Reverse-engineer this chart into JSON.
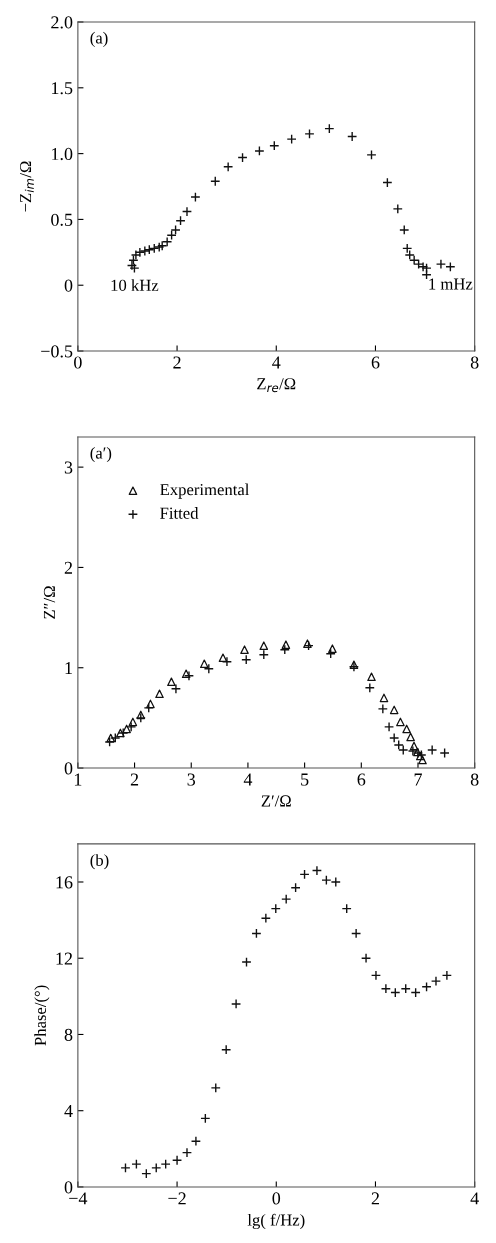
{
  "chart_data": [
    {
      "type": "scatter",
      "xlabel": "Z$_{re}$/Ω",
      "ylabel": "−Z$_{im}$/Ω",
      "marker": "cross",
      "color": "#111111",
      "xlim": [
        0,
        8
      ],
      "ylim": [
        -0.5,
        2.0
      ],
      "xticks": [
        0,
        2,
        4,
        6,
        8
      ],
      "yticks": [
        {
          "value": -0.5,
          "label": "−0.5"
        },
        0,
        0.5,
        {
          "value": 1.0,
          "label": "1.0"
        },
        1.5,
        {
          "value": 2.0,
          "label": "2.0"
        }
      ],
      "annotations": [
        "(a)",
        {
          "text": "10 kHz",
          "x": 1.14,
          "y": 0.13
        },
        {
          "text": "1 mHz",
          "x": 7.51,
          "y": 0.14
        }
      ],
      "x": [
        1.09,
        1.14,
        1.12,
        1.17,
        1.25,
        1.35,
        1.44,
        1.54,
        1.64,
        1.7,
        1.8,
        1.89,
        1.97,
        2.07,
        2.2,
        2.37,
        2.77,
        3.03,
        3.32,
        3.66,
        3.96,
        4.31,
        4.67,
        5.07,
        5.53,
        5.92,
        6.24,
        6.45,
        6.58,
        6.64,
        6.69,
        6.78,
        6.87,
        6.96,
        7.03,
        7.03,
        7.32,
        7.51
      ],
      "values": [
        0.15,
        0.13,
        0.19,
        0.23,
        0.25,
        0.26,
        0.27,
        0.28,
        0.29,
        0.3,
        0.33,
        0.38,
        0.42,
        0.49,
        0.56,
        0.67,
        0.79,
        0.9,
        0.97,
        1.02,
        1.06,
        1.11,
        1.15,
        1.19,
        1.13,
        0.99,
        0.78,
        0.58,
        0.42,
        0.28,
        0.23,
        0.19,
        0.16,
        0.14,
        0.13,
        0.08,
        0.16,
        0.14
      ]
    },
    {
      "type": "scatter",
      "xlabel": "Z′/Ω",
      "ylabel": "Z″/Ω",
      "legend": "top left",
      "xlim": [
        1,
        8
      ],
      "ylim": [
        0,
        3.3
      ],
      "xticks": [
        1,
        2,
        3,
        4,
        5,
        6,
        7,
        8
      ],
      "yticks": [
        0,
        1,
        2,
        3
      ],
      "annotations": [
        "(a′)"
      ],
      "series": [
        {
          "name": "Experimental",
          "color": "#111111",
          "marker": "triangle",
          "x": [
            1.58,
            1.75,
            1.86,
            1.97,
            2.11,
            2.28,
            2.44,
            2.65,
            2.91,
            3.23,
            3.56,
            3.94,
            4.28,
            4.67,
            5.05,
            5.49,
            5.87,
            6.18,
            6.4,
            6.58,
            6.69,
            6.8,
            6.87,
            6.93,
            6.99,
            7.04,
            7.08
          ],
          "values": [
            0.3,
            0.35,
            0.39,
            0.46,
            0.53,
            0.64,
            0.74,
            0.86,
            0.94,
            1.04,
            1.1,
            1.18,
            1.22,
            1.23,
            1.24,
            1.19,
            1.03,
            0.91,
            0.7,
            0.58,
            0.46,
            0.39,
            0.31,
            0.22,
            0.16,
            0.12,
            0.08
          ]
        },
        {
          "name": "Fitted",
          "color": "#111111",
          "marker": "cross",
          "x": [
            1.56,
            1.66,
            1.8,
            1.94,
            2.11,
            2.25,
            2.73,
            2.96,
            3.31,
            3.63,
            3.97,
            4.28,
            4.65,
            5.07,
            5.46,
            5.87,
            6.15,
            6.38,
            6.49,
            6.58,
            6.66,
            6.74,
            6.91,
            7.0,
            7.06,
            7.25,
            7.47
          ],
          "values": [
            0.26,
            0.3,
            0.35,
            0.41,
            0.5,
            0.6,
            0.79,
            0.92,
            0.99,
            1.06,
            1.08,
            1.13,
            1.18,
            1.22,
            1.14,
            1.01,
            0.8,
            0.59,
            0.41,
            0.3,
            0.23,
            0.18,
            0.17,
            0.15,
            0.13,
            0.18,
            0.15
          ]
        }
      ]
    },
    {
      "type": "scatter",
      "xlabel": "lg( f/Hz)",
      "ylabel": "Phase/(°)",
      "marker": "cross",
      "color": "#111111",
      "xlim": [
        -4,
        4
      ],
      "ylim": [
        0,
        18
      ],
      "xticks": [
        {
          "value": -4,
          "label": "−4"
        },
        {
          "value": -2,
          "label": "−2"
        },
        0,
        2,
        4
      ],
      "yticks": [
        0,
        4,
        8,
        12,
        16
      ],
      "annotations": [
        "(b)"
      ],
      "x": [
        -3.04,
        -2.82,
        -2.62,
        -2.42,
        -2.23,
        -2.0,
        -1.8,
        -1.62,
        -1.43,
        -1.22,
        -1.01,
        -0.81,
        -0.6,
        -0.4,
        -0.21,
        -0.01,
        0.2,
        0.39,
        0.57,
        0.82,
        1.01,
        1.2,
        1.42,
        1.61,
        1.81,
        2.01,
        2.21,
        2.4,
        2.61,
        2.81,
        3.03,
        3.22,
        3.44
      ],
      "values": [
        1.0,
        1.2,
        0.7,
        1.0,
        1.2,
        1.4,
        1.8,
        2.4,
        3.6,
        5.2,
        7.2,
        9.6,
        11.8,
        13.3,
        14.1,
        14.6,
        15.1,
        15.7,
        16.4,
        16.6,
        16.1,
        16.0,
        14.6,
        13.3,
        12.0,
        11.1,
        10.4,
        10.2,
        10.4,
        10.2,
        10.5,
        10.8,
        11.1
      ]
    }
  ]
}
